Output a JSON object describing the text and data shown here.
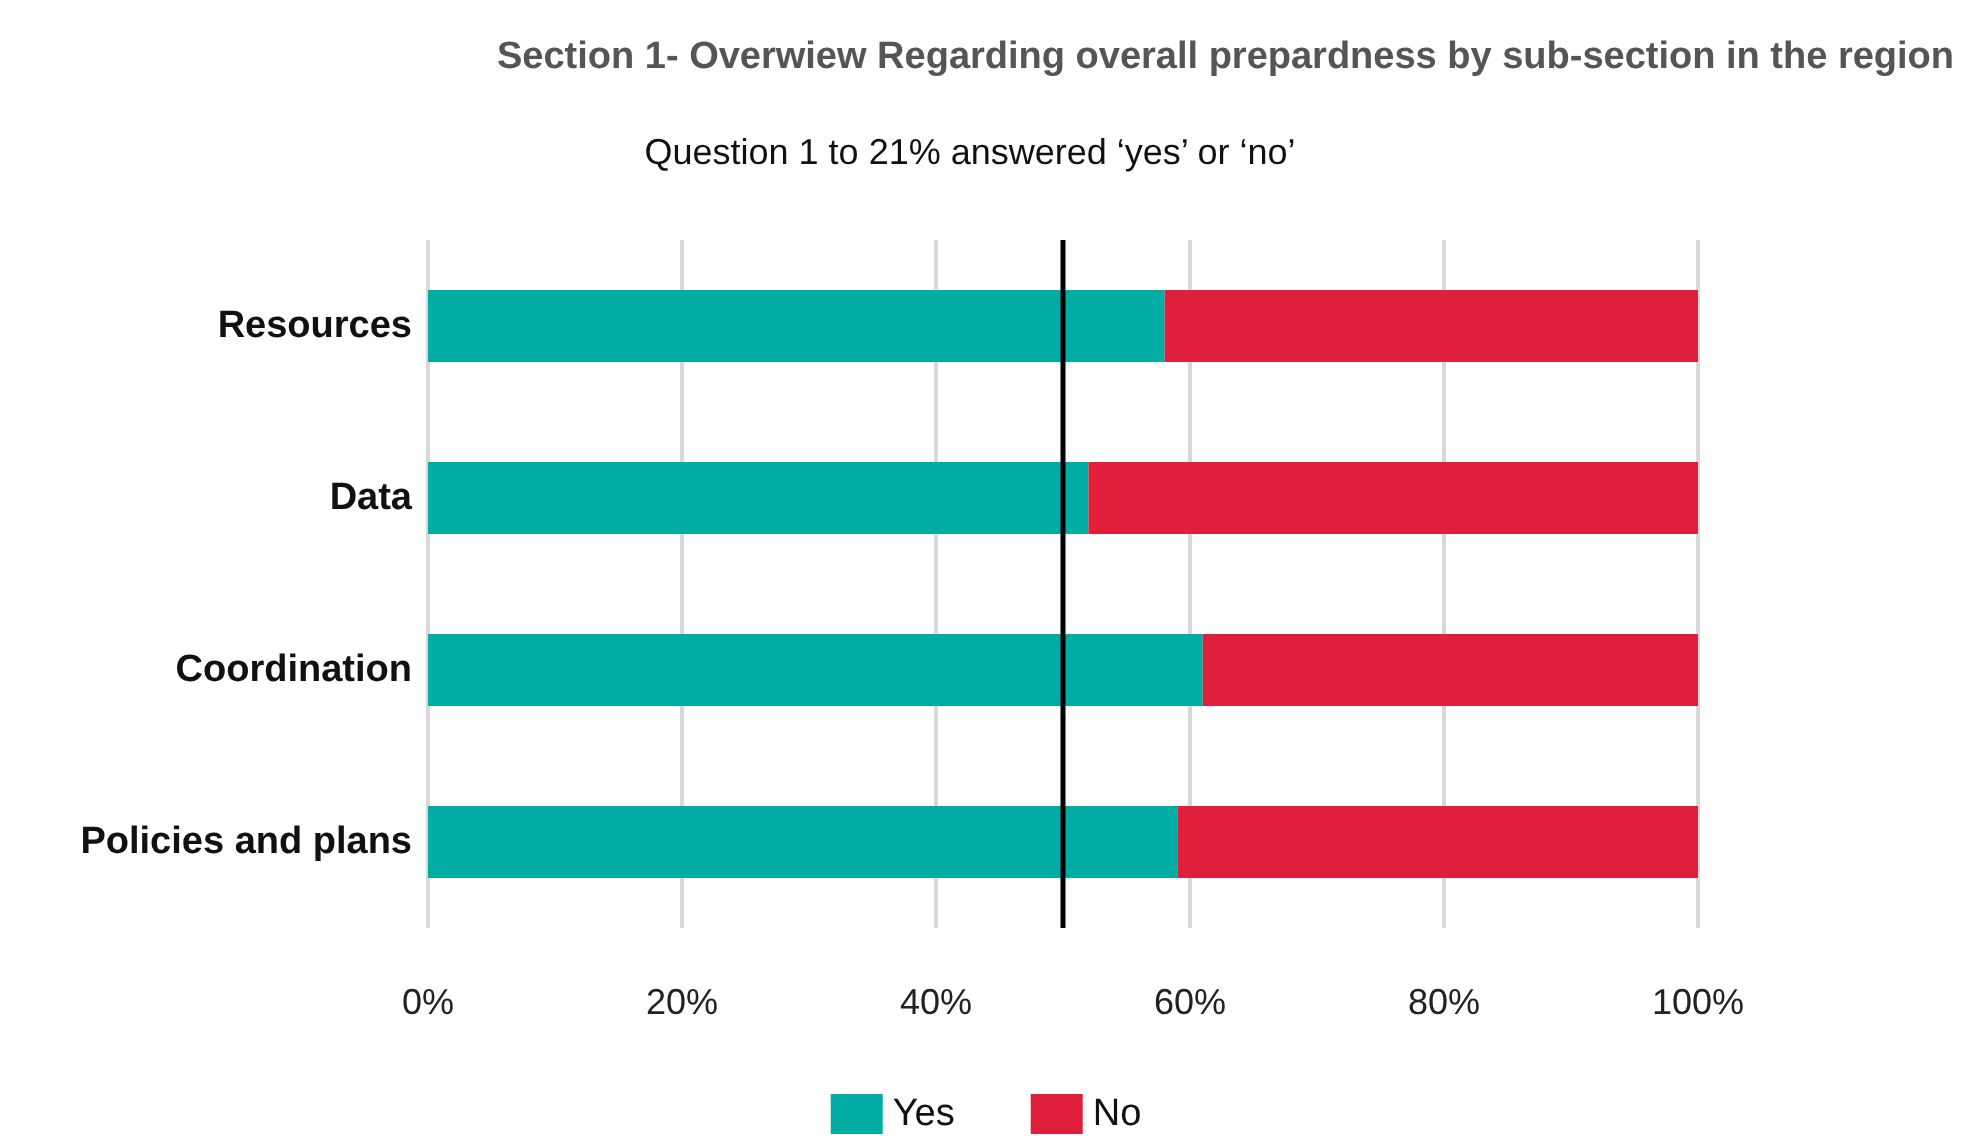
{
  "chart_data": {
    "type": "bar",
    "orientation": "horizontal",
    "stacked": true,
    "title": "Section 1- Overwiew Regarding overall prepardness by sub-section in the region",
    "subtitle": "Question 1 to 21% answered ‘yes’ or ‘no’",
    "categories": [
      "Resources",
      "Data",
      "Coordination",
      "Policies and plans"
    ],
    "series": [
      {
        "name": "Yes",
        "color": "#00ada5",
        "values": [
          58,
          52,
          61,
          59
        ]
      },
      {
        "name": "No",
        "color": "#e0203a",
        "values": [
          42,
          48,
          39,
          41
        ]
      }
    ],
    "xlim": [
      0,
      100
    ],
    "xticks": [
      {
        "value": 0,
        "label": "0%"
      },
      {
        "value": 20,
        "label": "20%"
      },
      {
        "value": 40,
        "label": "40%"
      },
      {
        "value": 60,
        "label": "60%"
      },
      {
        "value": 80,
        "label": "80%"
      },
      {
        "value": 100,
        "label": "100%"
      }
    ],
    "ref_lines": [
      {
        "axis": "x",
        "value": 50,
        "color": "#000000"
      }
    ],
    "grid": "x",
    "legend": "bottom"
  }
}
